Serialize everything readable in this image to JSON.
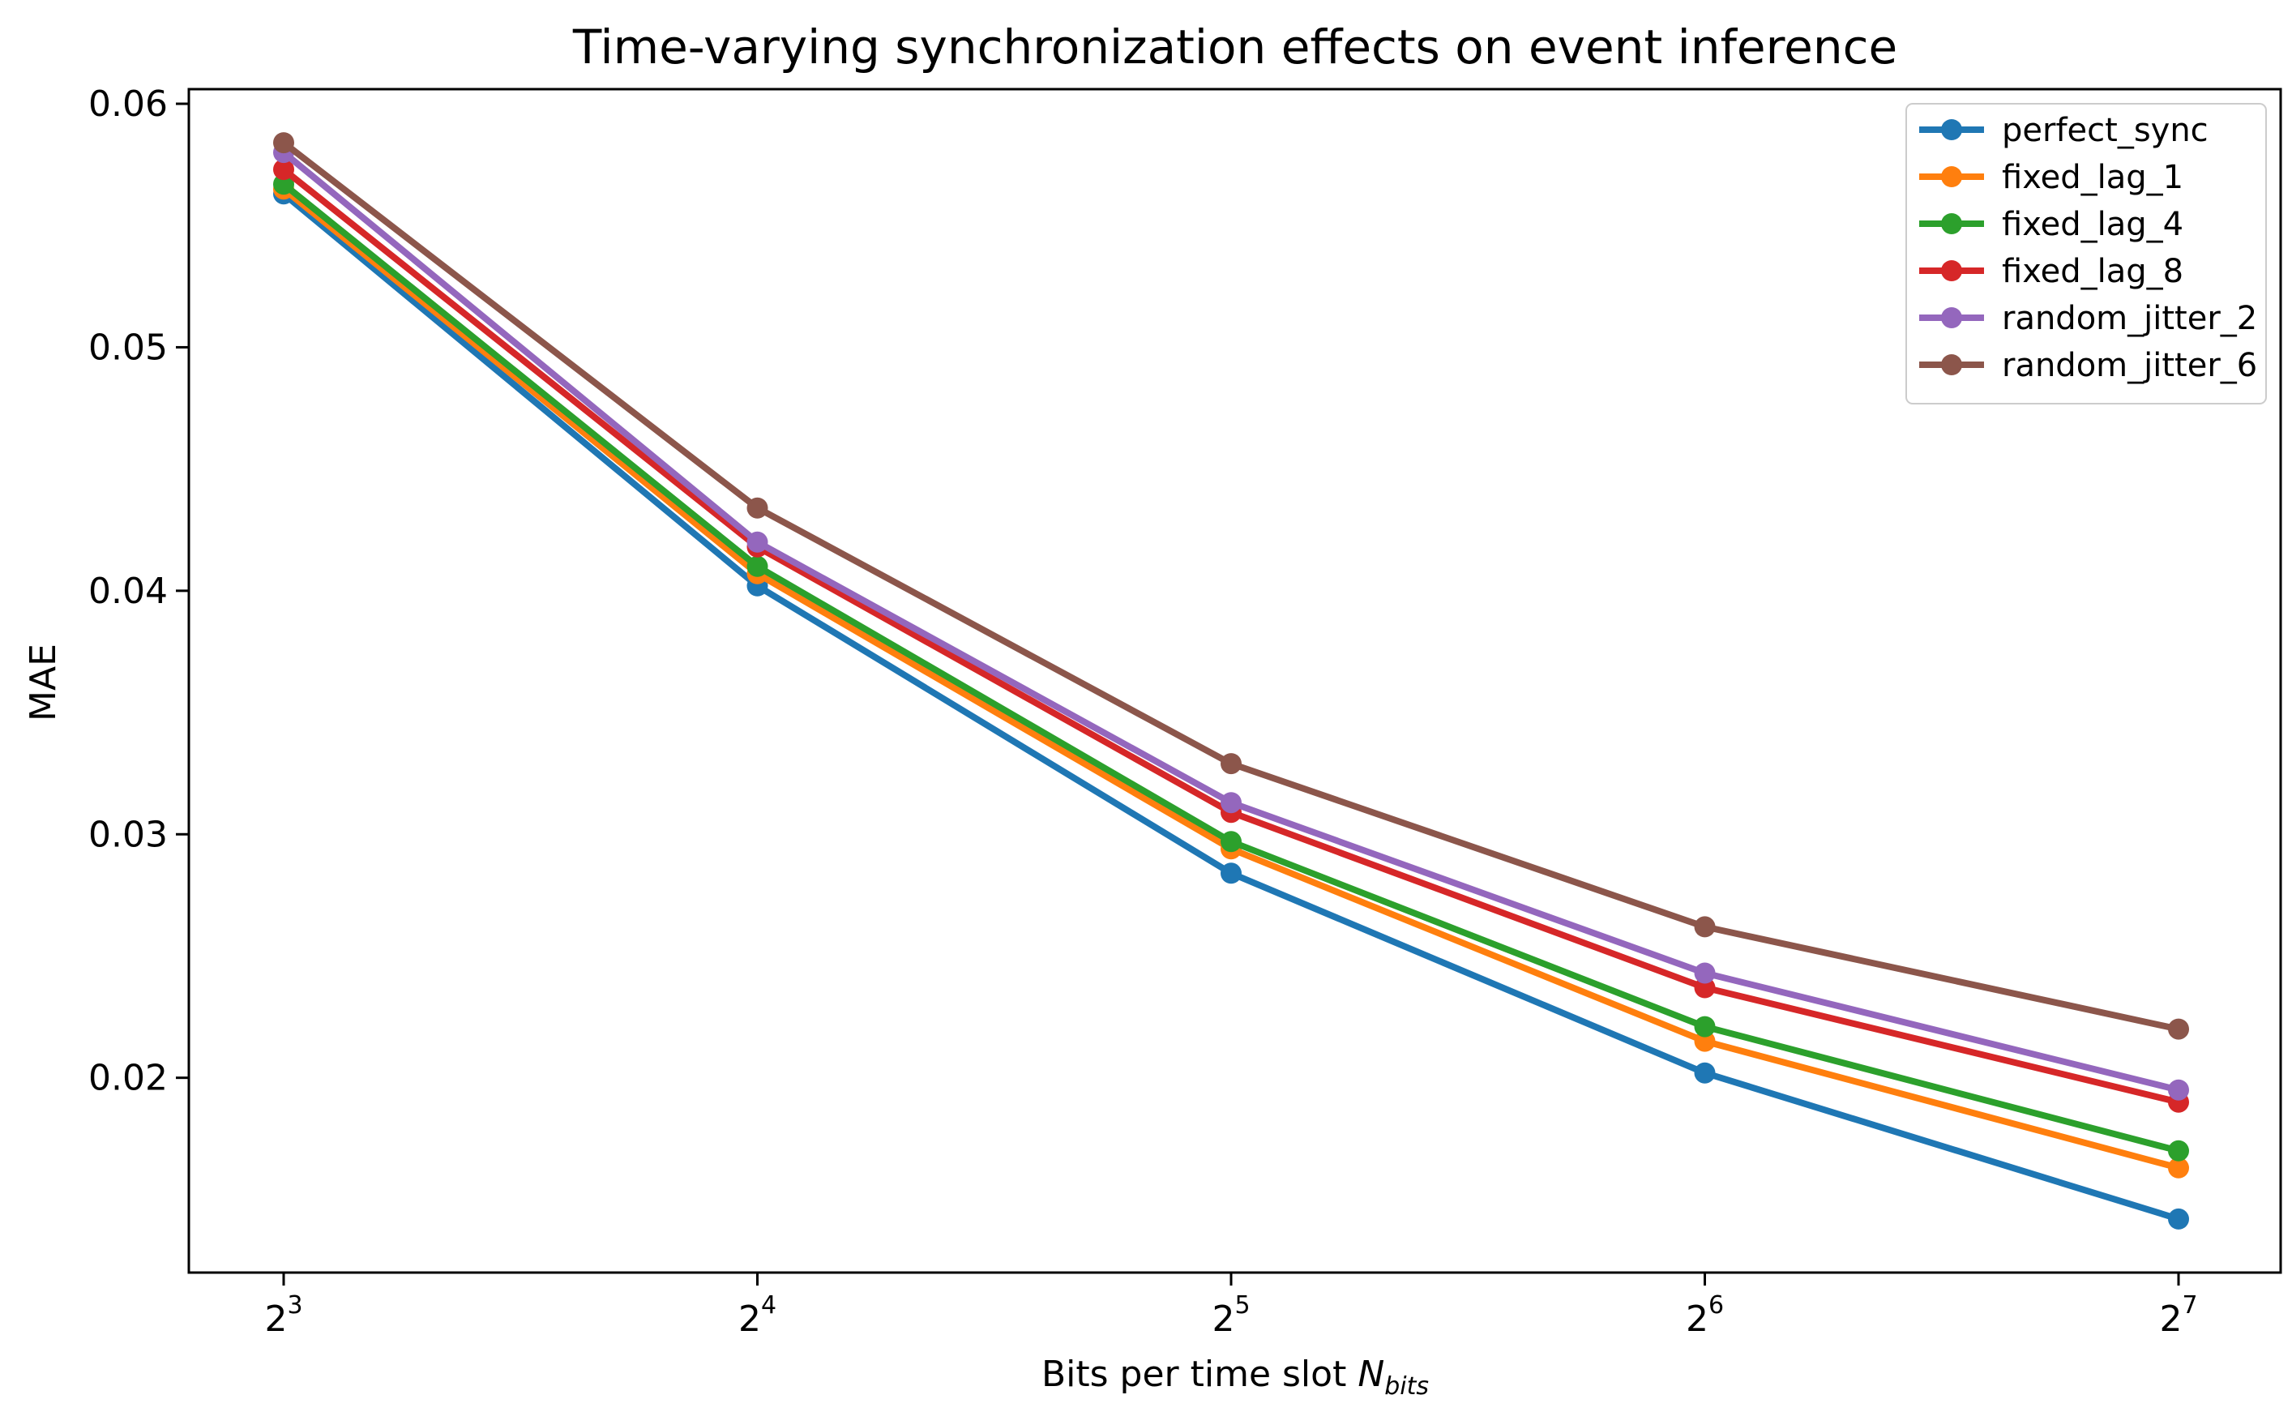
{
  "chart_data": {
    "type": "line",
    "title": "Time-varying synchronization effects on event inference",
    "xlabel": {
      "text": "Bits per time slot ",
      "symbol": "N",
      "subscript": "bits"
    },
    "ylabel": "MAE",
    "x_scale": "log2",
    "x": [
      8,
      16,
      32,
      64,
      128
    ],
    "x_tick_labels": [
      {
        "base": "2",
        "exp": "3"
      },
      {
        "base": "2",
        "exp": "4"
      },
      {
        "base": "2",
        "exp": "5"
      },
      {
        "base": "2",
        "exp": "6"
      },
      {
        "base": "2",
        "exp": "7"
      }
    ],
    "ylim": [
      0.012,
      0.0606
    ],
    "yticks": [
      0.02,
      0.03,
      0.04,
      0.05,
      0.06
    ],
    "y_tick_labels": [
      "0.02",
      "0.03",
      "0.04",
      "0.05",
      "0.06"
    ],
    "grid": false,
    "legend_position": "top-right",
    "series": [
      {
        "name": "perfect_sync",
        "color": "#1f77b4",
        "values": [
          0.0563,
          0.0402,
          0.0284,
          0.0202,
          0.0142
        ]
      },
      {
        "name": "fixed_lag_1",
        "color": "#ff7f0e",
        "values": [
          0.0565,
          0.0407,
          0.0294,
          0.0215,
          0.0163
        ]
      },
      {
        "name": "fixed_lag_4",
        "color": "#2ca02c",
        "values": [
          0.0567,
          0.041,
          0.0297,
          0.0221,
          0.017
        ]
      },
      {
        "name": "fixed_lag_8",
        "color": "#d62728",
        "values": [
          0.0573,
          0.0418,
          0.0309,
          0.0237,
          0.019
        ]
      },
      {
        "name": "random_jitter_2",
        "color": "#9467bd",
        "values": [
          0.058,
          0.042,
          0.0313,
          0.0243,
          0.0195
        ]
      },
      {
        "name": "random_jitter_6",
        "color": "#8c564b",
        "values": [
          0.0584,
          0.0434,
          0.0329,
          0.0262,
          0.022
        ]
      }
    ]
  }
}
